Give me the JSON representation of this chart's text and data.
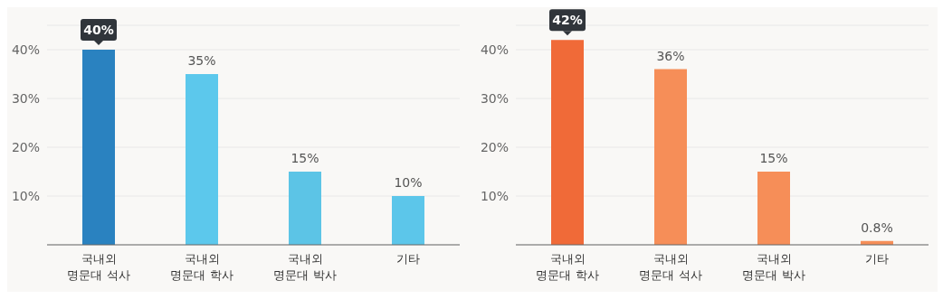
{
  "chart_data": [
    {
      "type": "bar",
      "categories": [
        "국내외 명문대 석사",
        "국내외 명문대 학사",
        "국내외 명문대 박사",
        "기타"
      ],
      "values": [
        40,
        35,
        15,
        10
      ],
      "colors": [
        "#2a82c0",
        "#5cc8ec",
        "#5cc4e6",
        "#5cc6ea"
      ],
      "value_labels": [
        "40%",
        "35%",
        "15%",
        "10%"
      ],
      "ylim": [
        0,
        45
      ],
      "yticks": [
        {
          "value": 10,
          "label": "10%"
        },
        {
          "value": 20,
          "label": "20%"
        },
        {
          "value": 30,
          "label": "30%"
        },
        {
          "value": 40,
          "label": "40%"
        }
      ],
      "grid": "y"
    },
    {
      "type": "bar",
      "categories": [
        "국내외 명문대 학사",
        "국내외 명문대 석사",
        "국내외 명문대 박사",
        "기타"
      ],
      "values": [
        42,
        36,
        15,
        0.8
      ],
      "colors": [
        "#f06a38",
        "#f68e58",
        "#f68e58",
        "#f68e58"
      ],
      "value_labels": [
        "42%",
        "36%",
        "15%",
        "0.8%"
      ],
      "ylim": [
        0,
        45
      ],
      "yticks": [
        {
          "value": 10,
          "label": "10%"
        },
        {
          "value": 20,
          "label": "20%"
        },
        {
          "value": 30,
          "label": "30%"
        },
        {
          "value": 40,
          "label": "40%"
        }
      ],
      "grid": "y"
    }
  ]
}
